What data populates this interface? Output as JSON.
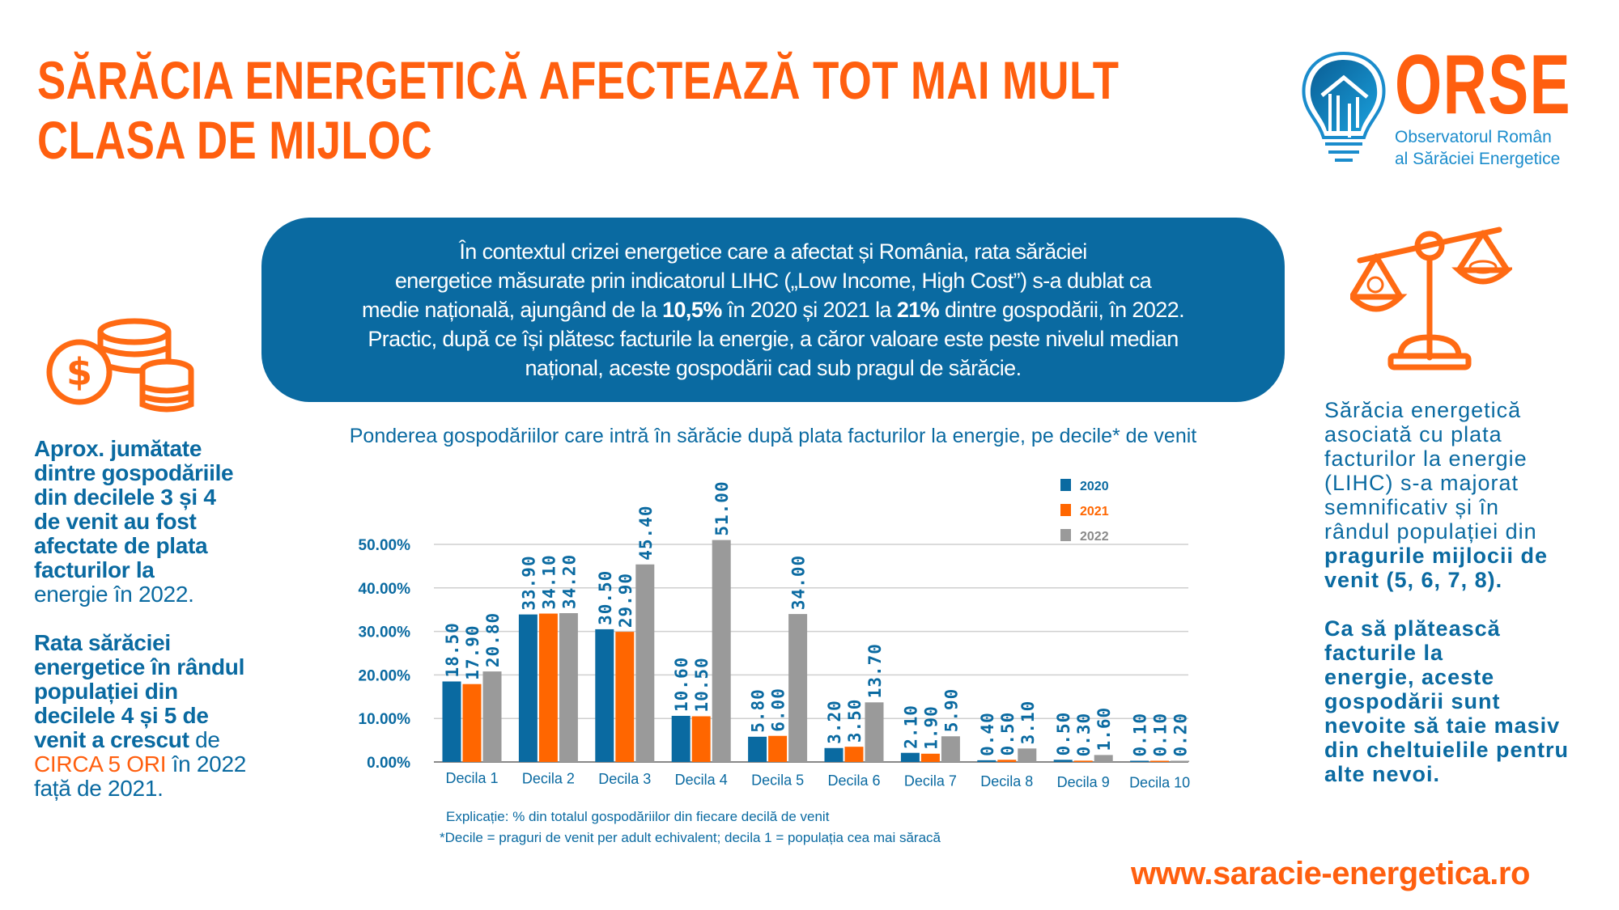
{
  "header": {
    "title_lines": [
      "SĂRĂCIA ENERGETICĂ AFECTEAZĂ TOT MAI MULT",
      "CLASA DE MIJLOC"
    ]
  },
  "logo": {
    "name": "ORSE",
    "subtitle_lines": [
      "Observatorul Român",
      "al Sărăciei Energetice"
    ],
    "icon": "lightbulb-house-icon"
  },
  "intro": {
    "lines": [
      [
        {
          "t": "În contextul crizei energetice care a afectat și România, rata sărăciei",
          "s": "r"
        }
      ],
      [
        {
          "t": "energetice  măsurate prin indicatorul LIHC („Low Income, High Cost”) s-a dublat ca",
          "s": "r"
        }
      ],
      [
        {
          "t": "medie națională, ajungând de la ",
          "s": "r"
        },
        {
          "t": "10,5%",
          "s": "b"
        },
        {
          "t": " în 2020 și 2021 la ",
          "s": "r"
        },
        {
          "t": "21%",
          "s": "b"
        },
        {
          "t": " dintre gospodării, în 2022.",
          "s": "r"
        }
      ],
      [
        {
          "t": "Practic, după ce își plătesc facturile la energie, a căror valoare este peste nivelul median",
          "s": "r"
        }
      ],
      [
        {
          "t": "național, aceste gospodării cad sub pragul de sărăcie.",
          "s": "r"
        }
      ]
    ]
  },
  "left_panel": {
    "icon": "coins-dollar-icon",
    "paragraphs": [
      [
        [
          {
            "t": "Aprox. jumătate",
            "s": "b"
          }
        ],
        [
          {
            "t": "dintre gospodăriile",
            "s": "b"
          }
        ],
        [
          {
            "t": "din decilele 3 și 4",
            "s": "b"
          }
        ],
        [
          {
            "t": "de venit au fost",
            "s": "b"
          }
        ],
        [
          {
            "t": "afectate de plata",
            "s": "b"
          }
        ],
        [
          {
            "t": "facturilor la",
            "s": "b"
          }
        ],
        [
          {
            "t": "energie în 2022.",
            "s": "r"
          }
        ]
      ],
      [
        [
          {
            "t": "Rata sărăciei",
            "s": "b"
          }
        ],
        [
          {
            "t": "energetice în rândul",
            "s": "b"
          }
        ],
        [
          {
            "t": "populației din",
            "s": "b"
          }
        ],
        [
          {
            "t": "decilele 4 și 5 de",
            "s": "b"
          }
        ],
        [
          {
            "t": "venit a crescut",
            "s": "b"
          },
          {
            "t": " de",
            "s": "r"
          }
        ],
        [
          {
            "t": "CIRCA 5 ORI",
            "s": "o"
          },
          {
            "t": " în 2022",
            "s": "r"
          }
        ],
        [
          {
            "t": "față de 2021.",
            "s": "r"
          }
        ]
      ]
    ]
  },
  "right_panel": {
    "icon": "balance-scale-icon",
    "paragraphs": [
      [
        [
          {
            "t": "Sărăcia energetică",
            "s": "r"
          }
        ],
        [
          {
            "t": "asociată cu plata",
            "s": "r"
          }
        ],
        [
          {
            "t": "facturilor la energie",
            "s": "r"
          }
        ],
        [
          {
            "t": "(LIHC) s-a majorat",
            "s": "r"
          }
        ],
        [
          {
            "t": "semnificativ și în",
            "s": "r"
          }
        ],
        [
          {
            "t": "rândul populației din",
            "s": "r"
          }
        ],
        [
          {
            "t": "pragurile mijlocii de",
            "s": "b"
          }
        ],
        [
          {
            "t": "venit (5, 6, 7, 8).",
            "s": "b"
          }
        ]
      ],
      [
        [
          {
            "t": "Ca să plătească",
            "s": "b"
          }
        ],
        [
          {
            "t": "facturile la",
            "s": "b"
          }
        ],
        [
          {
            "t": "energie, aceste",
            "s": "b"
          }
        ],
        [
          {
            "t": "gospodării sunt",
            "s": "b"
          }
        ],
        [
          {
            "t": "nevoite să taie masiv",
            "s": "b"
          }
        ],
        [
          {
            "t": "din cheltuielile pentru",
            "s": "b"
          }
        ],
        [
          {
            "t": "alte nevoi.",
            "s": "b"
          }
        ]
      ]
    ]
  },
  "chart_data": {
    "type": "bar",
    "title": "Ponderea gospodăriilor care intră în sărăcie după plata facturilor la energie, pe decile* de venit",
    "categories": [
      "Decila 1",
      "Decila 2",
      "Decila 3",
      "Decila 4",
      "Decila 5",
      "Decila 6",
      "Decila 7",
      "Decila 8",
      "Decila 9",
      "Decila 10"
    ],
    "series": [
      {
        "name": "2020",
        "color": "#0a6aa1",
        "values": [
          18.5,
          33.9,
          30.5,
          10.6,
          5.8,
          3.2,
          2.1,
          0.4,
          0.5,
          0.1
        ],
        "labels": [
          "18.50",
          "33.90",
          "30.50",
          "10.60",
          "5.80",
          "3.20",
          "2.10",
          "0.40",
          "0.50",
          "0.10"
        ]
      },
      {
        "name": "2021",
        "color": "#ff6600",
        "values": [
          17.9,
          34.1,
          29.9,
          10.5,
          6.0,
          3.5,
          1.9,
          0.5,
          0.3,
          0.1
        ],
        "labels": [
          "17.90",
          "34.10",
          "29.90",
          "10.50",
          "6.00",
          "3.50",
          "1.90",
          "0.50",
          "0.30",
          "0.10"
        ]
      },
      {
        "name": "2022",
        "color": "#9a9a9a",
        "values": [
          20.8,
          34.2,
          45.4,
          51.0,
          34.0,
          13.7,
          5.9,
          3.1,
          1.6,
          0.2
        ],
        "labels": [
          "20.80",
          "34.20",
          "45.40",
          "51.00",
          "34.00",
          "13.70",
          "5.90",
          "3.10",
          "1.60",
          "0.20"
        ]
      }
    ],
    "y_ticks": [
      "0.00%",
      "10.00%",
      "20.00%",
      "30.00%",
      "40.00%",
      "50.00%"
    ],
    "ylim": [
      0,
      50
    ],
    "grid": true,
    "legend": "top-right",
    "xlabel": "",
    "ylabel": ""
  },
  "footnotes": [
    "Explicație: % din totalul gospodăriilor din fiecare decilă de venit",
    "*Decile = praguri de venit per adult echivalent; decila 1 = populația cea mai săracă"
  ],
  "footer": {
    "url": "www.saracie-energetica.ro"
  },
  "colors": {
    "orange": "#ff5f0f",
    "blue": "#0a6aa1",
    "gray": "#9a9a9a"
  }
}
